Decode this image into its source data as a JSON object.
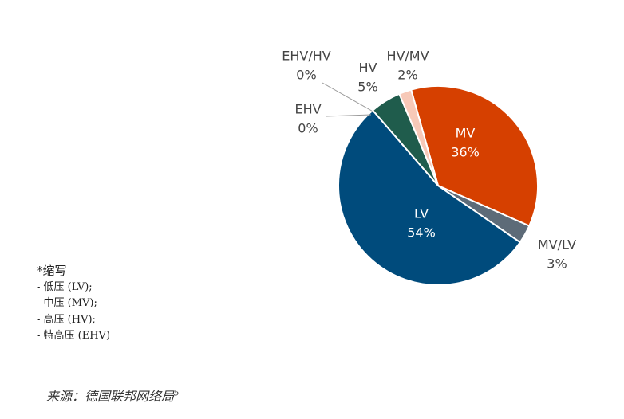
{
  "chart_data": {
    "type": "pie",
    "categories": [
      "MV",
      "MV/LV",
      "LV",
      "EHV",
      "EHV/HV",
      "HV",
      "HV/MV"
    ],
    "values": [
      36,
      3,
      54,
      0,
      0,
      5,
      2
    ],
    "value_labels": [
      "36%",
      "3%",
      "54%",
      "0%",
      "0%",
      "5%",
      "2%"
    ],
    "colors": [
      "#d64000",
      "#5d6b78",
      "#004b7c",
      "#8aa0b0",
      "#a8b3bb",
      "#1f5c4c",
      "#f7c9b8"
    ]
  },
  "notes": {
    "title": "*缩写",
    "items": [
      "- 低压 (LV);",
      "- 中压 (MV);",
      "- 高压 (HV);",
      "- 特高压 (EHV)"
    ]
  },
  "source": {
    "text": "来源：德国联邦网络局",
    "ref": "5"
  }
}
